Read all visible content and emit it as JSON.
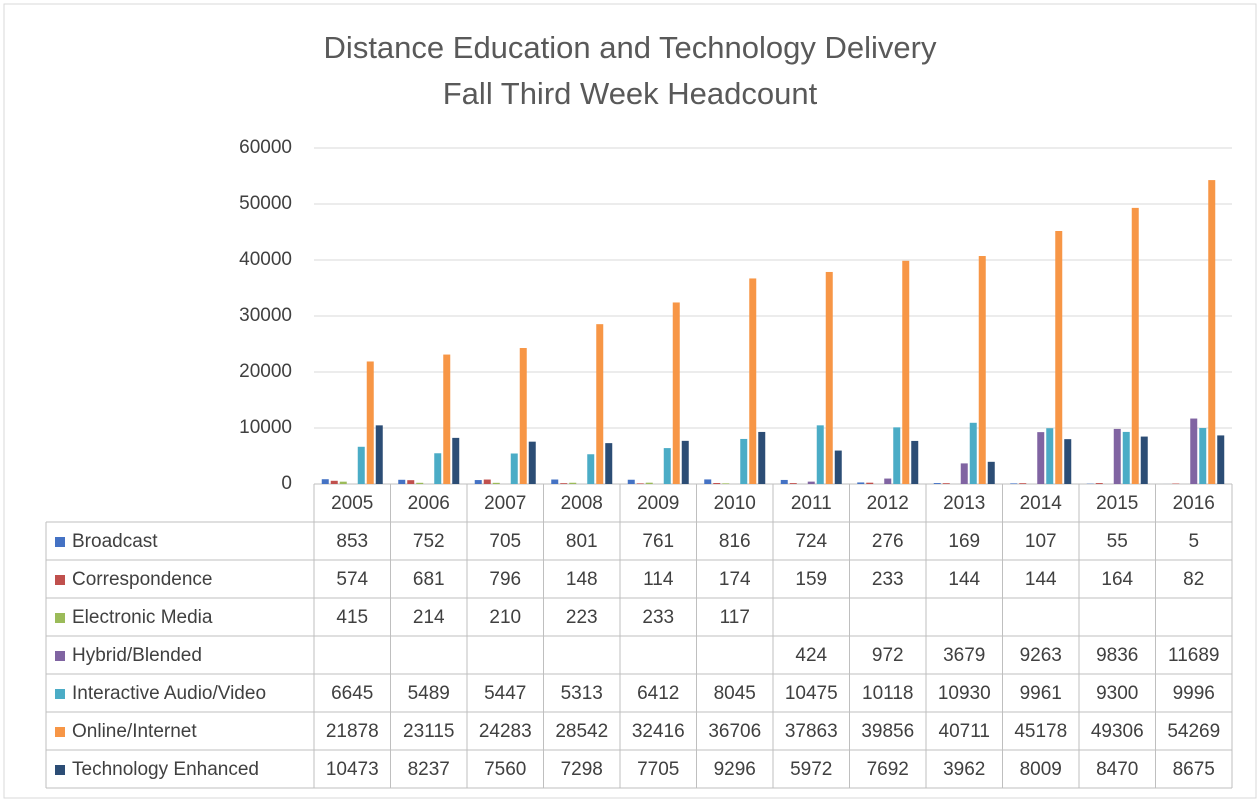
{
  "chart_data": {
    "type": "bar",
    "title": "Distance Education and Technology Delivery",
    "subtitle": "Fall Third Week Headcount",
    "categories": [
      "2005",
      "2006",
      "2007",
      "2008",
      "2009",
      "2010",
      "2011",
      "2012",
      "2013",
      "2014",
      "2015",
      "2016"
    ],
    "series": [
      {
        "name": "Broadcast",
        "color": "#4472c4",
        "values": [
          853,
          752,
          705,
          801,
          761,
          816,
          724,
          276,
          169,
          107,
          55,
          5
        ]
      },
      {
        "name": "Correspondence",
        "color": "#c0504d",
        "values": [
          574,
          681,
          796,
          148,
          114,
          174,
          159,
          233,
          144,
          144,
          164,
          82
        ]
      },
      {
        "name": "Electronic Media",
        "color": "#9bbb59",
        "values": [
          415,
          214,
          210,
          223,
          233,
          117,
          null,
          null,
          null,
          null,
          null,
          null
        ]
      },
      {
        "name": "Hybrid/Blended",
        "color": "#8064a2",
        "values": [
          null,
          null,
          null,
          null,
          null,
          null,
          424,
          972,
          3679,
          9263,
          9836,
          11689
        ]
      },
      {
        "name": "Interactive Audio/Video",
        "color": "#4bacc6",
        "values": [
          6645,
          5489,
          5447,
          5313,
          6412,
          8045,
          10475,
          10118,
          10930,
          9961,
          9300,
          9996
        ]
      },
      {
        "name": "Online/Internet",
        "color": "#f79646",
        "values": [
          21878,
          23115,
          24283,
          28542,
          32416,
          36706,
          37863,
          39856,
          40711,
          45178,
          49306,
          54269
        ]
      },
      {
        "name": "Technology Enhanced",
        "color": "#2c4d75",
        "values": [
          10473,
          8237,
          7560,
          7298,
          7705,
          9296,
          5972,
          7692,
          3962,
          8009,
          8470,
          8675
        ]
      }
    ],
    "ylim": [
      0,
      60000
    ],
    "yticks": [
      0,
      10000,
      20000,
      30000,
      40000,
      50000,
      60000
    ],
    "grid": true
  }
}
